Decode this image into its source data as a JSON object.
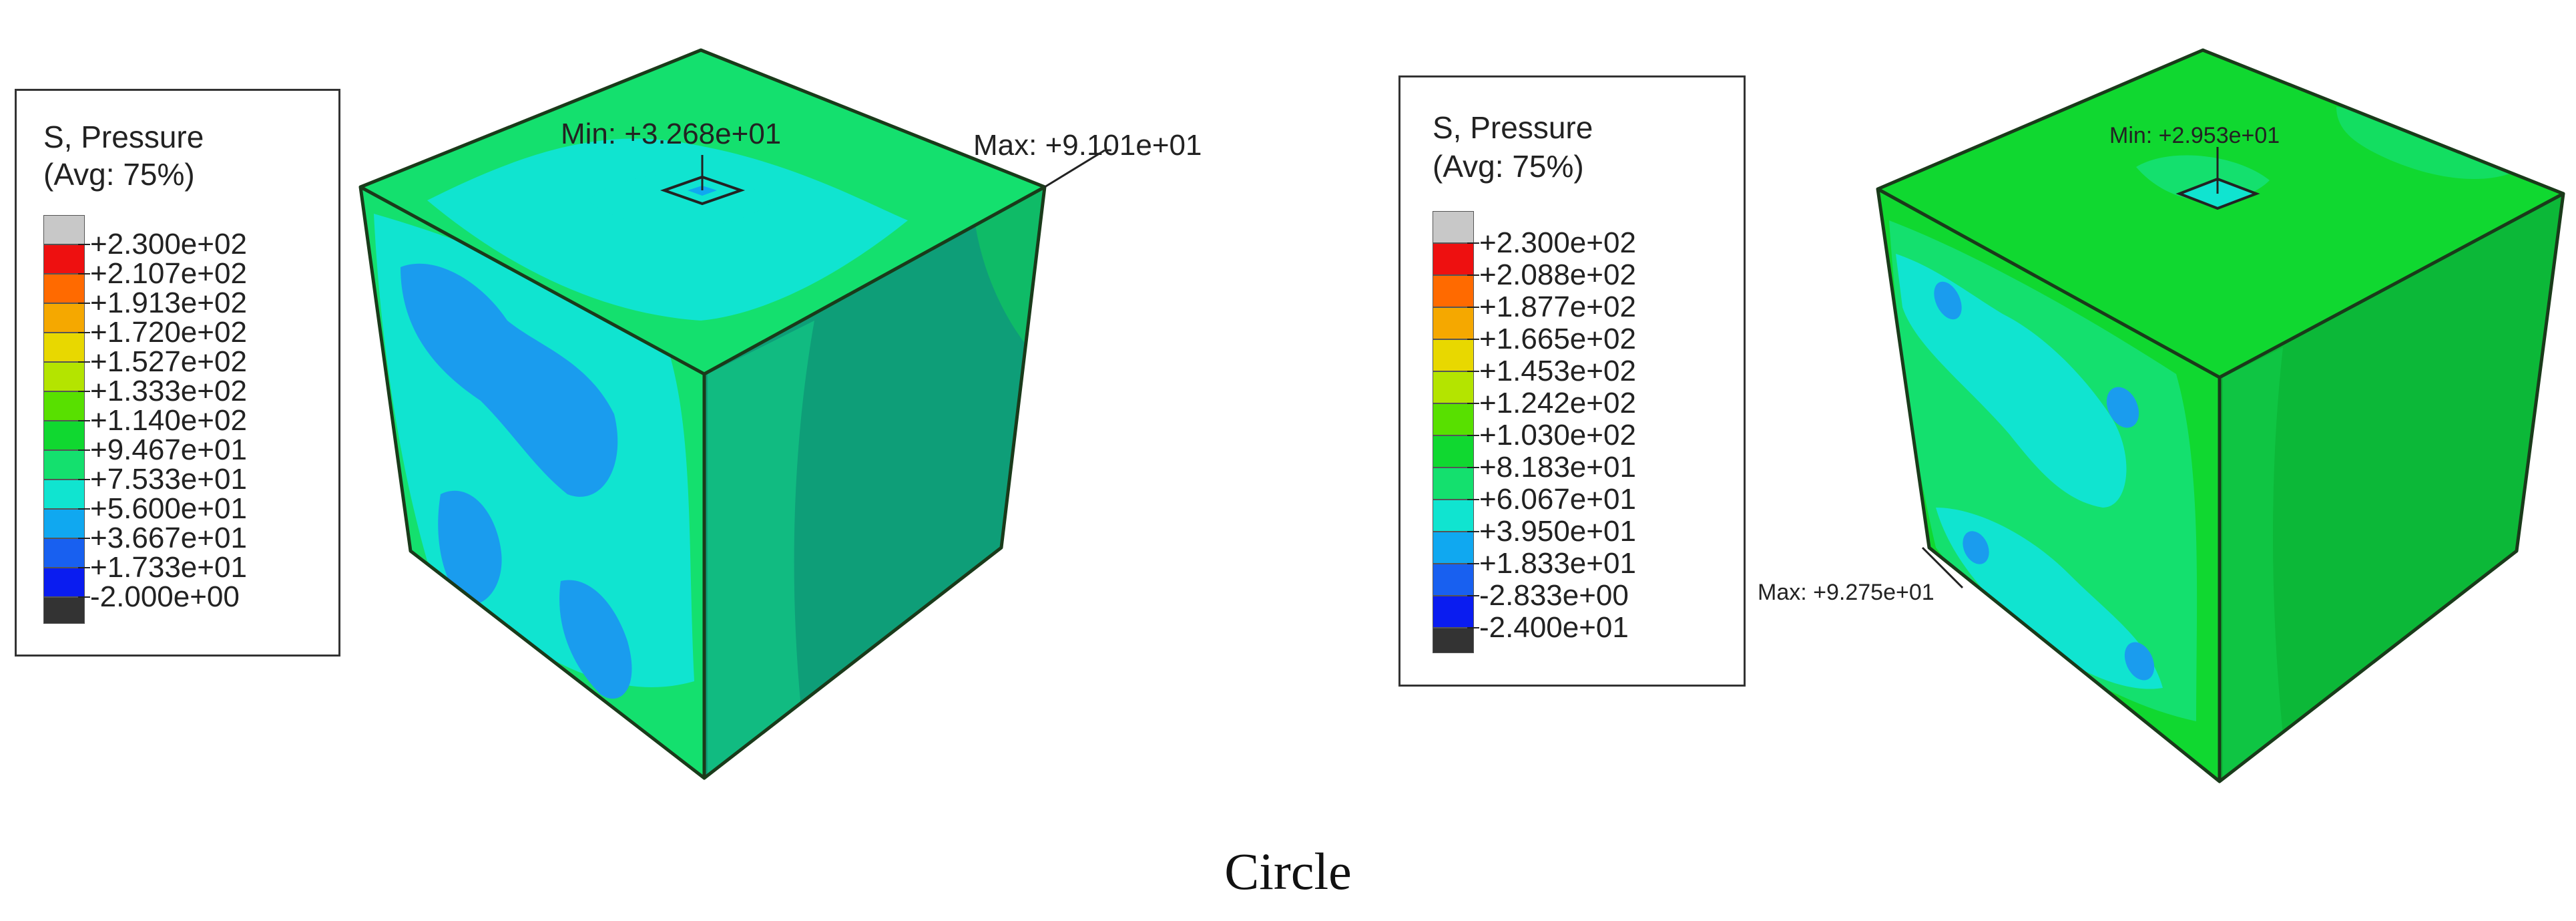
{
  "caption": "Circle",
  "panels": [
    {
      "legend_title_1": "S, Pressure",
      "legend_title_2": "(Avg: 75%)",
      "legend_values": [
        "+2.300e+02",
        "+2.107e+02",
        "+1.913e+02",
        "+1.720e+02",
        "+1.527e+02",
        "+1.333e+02",
        "+1.140e+02",
        "+9.467e+01",
        "+7.533e+01",
        "+5.600e+01",
        "+3.667e+01",
        "+1.733e+01",
        "-2.000e+00"
      ],
      "min_label": "Min: +3.268e+01",
      "max_label": "Max: +9.101e+01"
    },
    {
      "legend_title_1": "S, Pressure",
      "legend_title_2": "(Avg: 75%)",
      "legend_values": [
        "+2.300e+02",
        "+2.088e+02",
        "+1.877e+02",
        "+1.665e+02",
        "+1.453e+02",
        "+1.242e+02",
        "+1.030e+02",
        "+8.183e+01",
        "+6.067e+01",
        "+3.950e+01",
        "+1.833e+01",
        "-2.833e+00",
        "-2.400e+01"
      ],
      "min_label": "Min: +2.953e+01",
      "max_label": "Max: +9.275e+01"
    }
  ],
  "colors": {
    "legend_swatches": [
      "#c8c8c8",
      "#ee1010",
      "#ff6a00",
      "#f5a800",
      "#e8d800",
      "#b4e400",
      "#58e000",
      "#10d830",
      "#14e06e",
      "#10e4d0",
      "#10a8f0",
      "#1860f0",
      "#0a1cf0",
      "#333333"
    ],
    "edge": "#1a3a1a"
  }
}
